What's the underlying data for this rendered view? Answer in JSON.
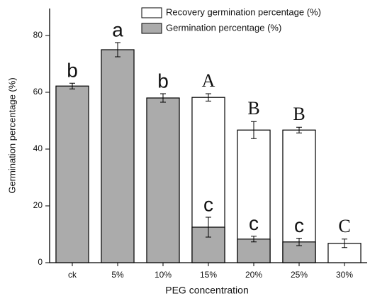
{
  "chart_data": {
    "type": "bar",
    "x_label": "PEG concentration",
    "y_label": "Germination percentage (%)",
    "categories": [
      "ck",
      "5%",
      "10%",
      "15%",
      "20%",
      "25%",
      "30%"
    ],
    "series": [
      {
        "name": "Recovery germination percentage (%)",
        "color": "#ffffff",
        "values": [
          null,
          null,
          null,
          58.2,
          46.7,
          46.7,
          6.8
        ],
        "errors": [
          null,
          null,
          null,
          1.3,
          3,
          1,
          1.5
        ],
        "letters": [
          null,
          null,
          null,
          "A",
          "B",
          "B",
          "C"
        ]
      },
      {
        "name": "Germination percentage (%)",
        "color": "#ababab",
        "values": [
          62.2,
          75,
          58,
          12.5,
          8.3,
          7.3,
          null
        ],
        "errors": [
          1,
          2.5,
          1.5,
          3.5,
          1,
          1.3,
          null
        ],
        "letters": [
          "b",
          "a",
          "b",
          "c",
          "c",
          "c",
          null
        ]
      }
    ],
    "ylim": [
      0,
      89.5
    ],
    "yticks": [
      0,
      20,
      40,
      60,
      80
    ],
    "grid": false,
    "legend": "top-right"
  }
}
